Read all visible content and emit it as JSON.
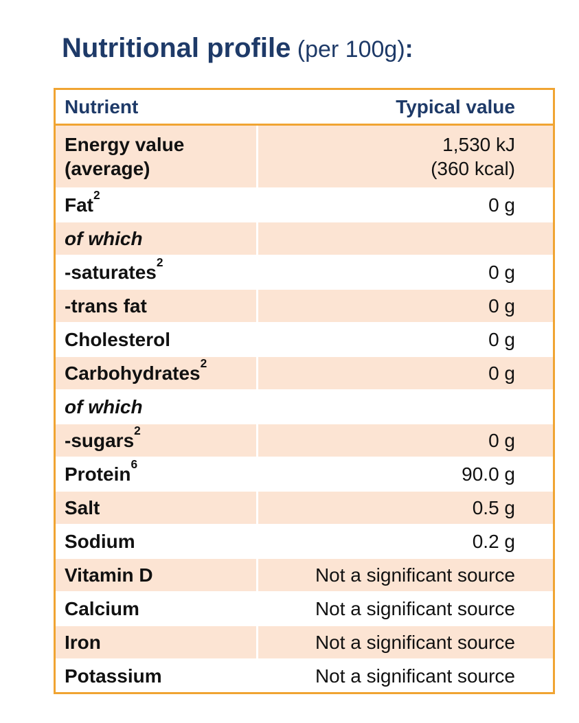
{
  "colors": {
    "accent_orange": "#F0A432",
    "navy_heading": "#1E3A68",
    "row_peach": "#FCE4D3"
  },
  "title": {
    "bold_part": "Nutritional profile",
    "normal_part": " (per 100g)",
    "colon": ":"
  },
  "table": {
    "headers": {
      "nutrient": "Nutrient",
      "typical_value": "Typical value"
    },
    "rows": [
      {
        "label": "Energy value",
        "label2": "(average)",
        "value": "1,530 kJ",
        "value2": "(360 kcal)"
      },
      {
        "label": "Fat",
        "sup": "2",
        "value": "0 g"
      },
      {
        "label": "of which",
        "italic": true,
        "value": ""
      },
      {
        "label": "-saturates",
        "sup": "2",
        "value": "0 g"
      },
      {
        "label": "-trans fat",
        "value": "0 g"
      },
      {
        "label": "Cholesterol",
        "value": "0 g"
      },
      {
        "label": "Carbohydrates",
        "sup": "2",
        "value": "0 g"
      },
      {
        "label": "of which",
        "italic": true,
        "value": ""
      },
      {
        "label": "-sugars",
        "sup": "2",
        "value": "0 g"
      },
      {
        "label": "Protein",
        "sup": "6",
        "value": "90.0 g"
      },
      {
        "label": "Salt",
        "value": "0.5 g"
      },
      {
        "label": "Sodium",
        "value": "0.2 g"
      },
      {
        "label": "Vitamin D",
        "value": "Not a significant source"
      },
      {
        "label": "Calcium",
        "value": "Not a significant source"
      },
      {
        "label": "Iron",
        "value": "Not a significant source"
      },
      {
        "label": "Potassium",
        "value": "Not a significant source"
      }
    ]
  }
}
